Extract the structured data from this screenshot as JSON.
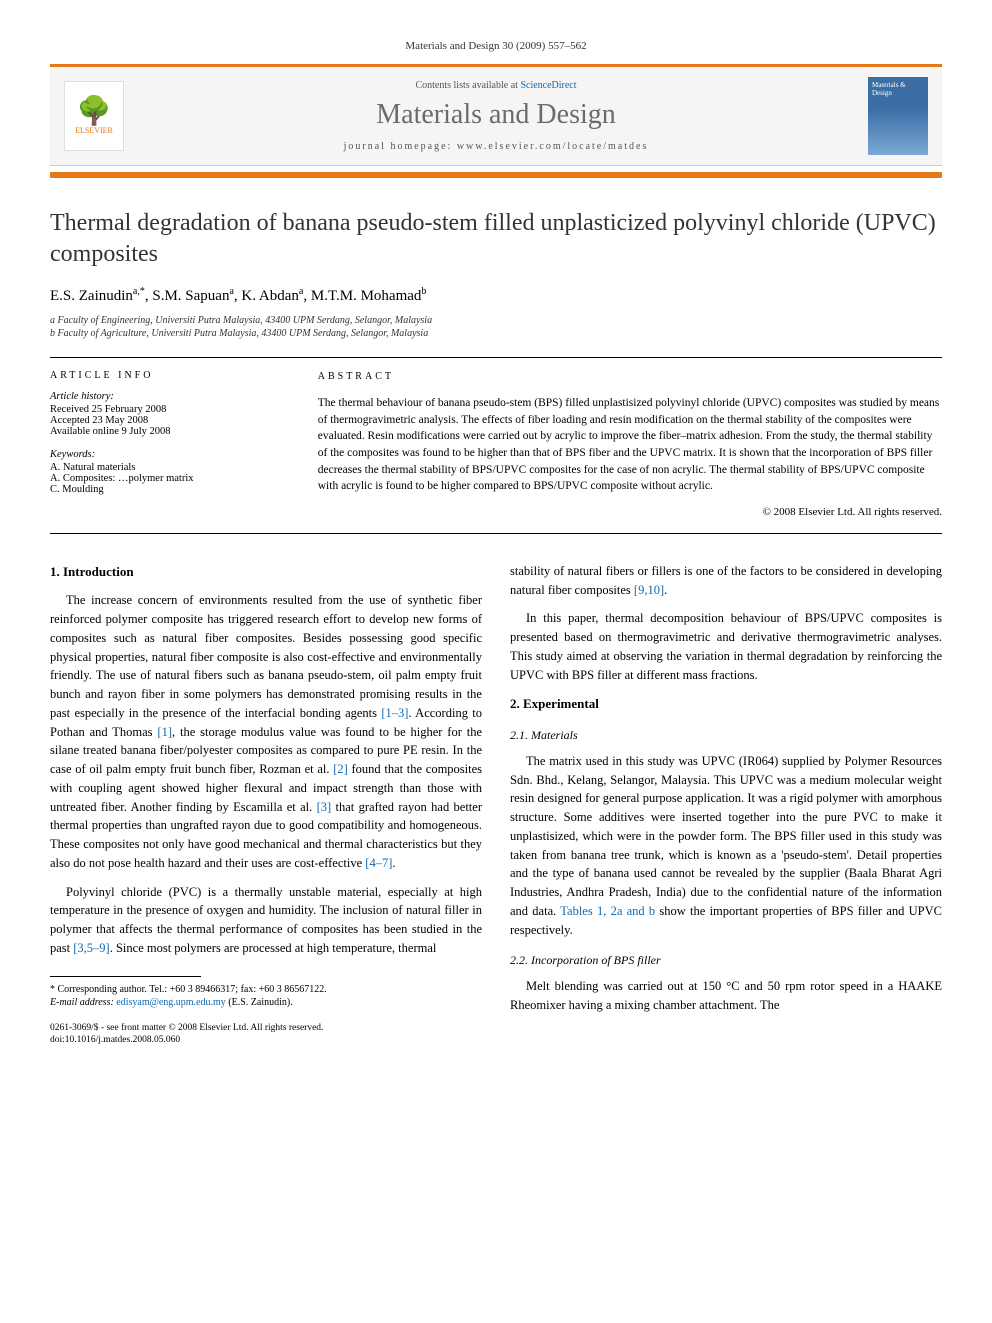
{
  "header": {
    "citation": "Materials and Design 30 (2009) 557–562",
    "contents_prefix": "Contents lists available at ",
    "contents_link": "ScienceDirect",
    "journal_name": "Materials and Design",
    "homepage_label": "journal homepage: www.elsevier.com/locate/matdes",
    "publisher": "ELSEVIER",
    "cover_text": "Materials & Design"
  },
  "article": {
    "title": "Thermal degradation of banana pseudo-stem filled unplasticized polyvinyl chloride (UPVC) composites",
    "authors_html": "E.S. Zainudin",
    "author1": "E.S. Zainudin",
    "author1_sup": "a,*",
    "author2": "S.M. Sapuan",
    "author2_sup": "a",
    "author3": "K. Abdan",
    "author3_sup": "a",
    "author4": "M.T.M. Mohamad",
    "author4_sup": "b",
    "affil_a": "a Faculty of Engineering, Universiti Putra Malaysia, 43400 UPM Serdang, Selangor, Malaysia",
    "affil_b": "b Faculty of Agriculture, Universiti Putra Malaysia, 43400 UPM Serdang, Selangor, Malaysia"
  },
  "info": {
    "heading": "ARTICLE INFO",
    "history_head": "Article history:",
    "received": "Received 25 February 2008",
    "accepted": "Accepted 23 May 2008",
    "online": "Available online 9 July 2008",
    "keywords_head": "Keywords:",
    "kw1": "A. Natural materials",
    "kw2": "A. Composites: …polymer matrix",
    "kw3": "C. Moulding"
  },
  "abstract": {
    "heading": "ABSTRACT",
    "text": "The thermal behaviour of banana pseudo-stem (BPS) filled unplastisized polyvinyl chloride (UPVC) composites was studied by means of thermogravimetric analysis. The effects of fiber loading and resin modification on the thermal stability of the composites were evaluated. Resin modifications were carried out by acrylic to improve the fiber–matrix adhesion. From the study, the thermal stability of the composites was found to be higher than that of BPS fiber and the UPVC matrix. It is shown that the incorporation of BPS filler decreases the thermal stability of BPS/UPVC composites for the case of non acrylic. The thermal stability of BPS/UPVC composite with acrylic is found to be higher compared to BPS/UPVC composite without acrylic.",
    "copyright": "© 2008 Elsevier Ltd. All rights reserved."
  },
  "body": {
    "left": {
      "h_intro": "1. Introduction",
      "p1": "The increase concern of environments resulted from the use of synthetic fiber reinforced polymer composite has triggered research effort to develop new forms of composites such as natural fiber composites. Besides possessing good specific physical properties, natural fiber composite is also cost-effective and environmentally friendly. The use of natural fibers such as banana pseudo-stem, oil palm empty fruit bunch and rayon fiber in some polymers has demonstrated promising results in the past especially in the presence of the interfacial bonding agents ",
      "p1_ref1": "[1–3]",
      "p1_cont": ". According to Pothan and Thomas ",
      "p1_ref2": "[1]",
      "p1_cont2": ", the storage modulus value was found to be higher for the silane treated banana fiber/polyester composites as compared to pure PE resin. In the case of oil palm empty fruit bunch fiber, Rozman et al. ",
      "p1_ref3": "[2]",
      "p1_cont3": " found that the composites with coupling agent showed higher flexural and impact strength than those with untreated fiber. Another finding by Escamilla et al. ",
      "p1_ref4": "[3]",
      "p1_cont4": " that grafted rayon had better thermal properties than ungrafted rayon due to good compatibility and homogeneous. These composites not only have good mechanical and thermal characteristics but they also do not pose health hazard and their uses are cost-effective ",
      "p1_ref5": "[4–7]",
      "p1_end": ".",
      "p2": "Polyvinyl chloride (PVC) is a thermally unstable material, especially at high temperature in the presence of oxygen and humidity. The inclusion of natural filler in polymer that affects the thermal performance of composites has been studied in the past ",
      "p2_ref1": "[3,5–9]",
      "p2_cont": ". Since most polymers are processed at high temperature, thermal",
      "footnote_star": "* Corresponding author. Tel.: +60 3 89466317; fax: +60 3 86567122.",
      "footnote_email_label": "E-mail address: ",
      "footnote_email": "edisyam@eng.upm.edu.my",
      "footnote_email_suffix": " (E.S. Zainudin).",
      "doi1": "0261-3069/$ - see front matter © 2008 Elsevier Ltd. All rights reserved.",
      "doi2": "doi:10.1016/j.matdes.2008.05.060"
    },
    "right": {
      "p1": "stability of natural fibers or fillers is one of the factors to be considered in developing natural fiber composites ",
      "p1_ref1": "[9,10]",
      "p1_end": ".",
      "p2": "In this paper, thermal decomposition behaviour of BPS/UPVC composites is presented based on thermogravimetric and derivative thermogravimetric analyses. This study aimed at observing the variation in thermal degradation by reinforcing the UPVC with BPS filler at different mass fractions.",
      "h_exp": "2. Experimental",
      "h_mat": "2.1. Materials",
      "p3a": "The matrix used in this study was UPVC (IR064) supplied by Polymer Resources Sdn. Bhd., Kelang, Selangor, Malaysia. This UPVC was a medium molecular weight resin designed for general purpose application. It was a rigid polymer with amorphous structure. Some additives were inserted together into the pure PVC to make it unplastisized, which were in the powder form. The BPS filler used in this study was taken from banana tree trunk, which is known as a 'pseudo-stem'. Detail properties and the type of banana used cannot be revealed by the supplier (Baala Bharat Agri Industries, Andhra Pradesh, India) due to the confidential nature of the information and data. ",
      "p3_ref": "Tables 1, 2a and b",
      "p3b": " show the important properties of BPS filler and UPVC respectively.",
      "h_incorp": "2.2. Incorporation of BPS filler",
      "p4": "Melt blending was carried out at 150 °C and 50 rpm rotor speed in a HAAKE Rheomixer having a mixing chamber attachment. The"
    }
  },
  "colors": {
    "accent": "#e67817",
    "link": "#1169b0",
    "text": "#000000",
    "muted": "#6b6b6b"
  }
}
